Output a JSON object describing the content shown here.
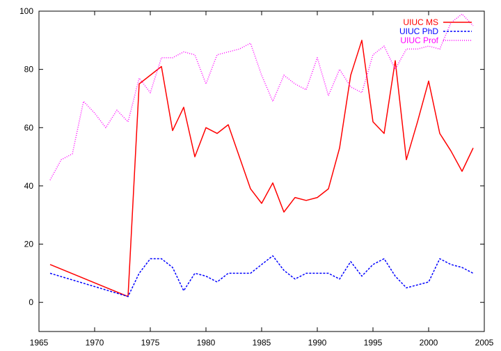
{
  "chart_data": {
    "type": "line",
    "title": "",
    "xlabel": "",
    "ylabel": "",
    "xlim": [
      1965,
      2005
    ],
    "ylim": [
      -10,
      100
    ],
    "xticks": [
      1965,
      1970,
      1975,
      1980,
      1985,
      1990,
      1995,
      2000,
      2005
    ],
    "yticks": [
      0,
      20,
      40,
      60,
      80,
      100
    ],
    "grid": false,
    "legend_position": "top-right",
    "series": [
      {
        "name": "UIUC MS",
        "color": "#ff0000",
        "dash": "solid",
        "points": [
          [
            1966,
            13
          ],
          [
            1973,
            2
          ],
          [
            1974,
            75
          ],
          [
            1976,
            81
          ],
          [
            1977,
            59
          ],
          [
            1978,
            67
          ],
          [
            1979,
            50
          ],
          [
            1980,
            60
          ],
          [
            1981,
            58
          ],
          [
            1982,
            61
          ],
          [
            1983,
            50
          ],
          [
            1984,
            39
          ],
          [
            1985,
            34
          ],
          [
            1986,
            41
          ],
          [
            1987,
            31
          ],
          [
            1988,
            36
          ],
          [
            1989,
            35
          ],
          [
            1990,
            36
          ],
          [
            1991,
            39
          ],
          [
            1992,
            53
          ],
          [
            1993,
            78
          ],
          [
            1994,
            90
          ],
          [
            1995,
            62
          ],
          [
            1996,
            58
          ],
          [
            1997,
            83
          ],
          [
            1998,
            49
          ],
          [
            1999,
            62
          ],
          [
            2000,
            76
          ],
          [
            2001,
            58
          ],
          [
            2002,
            52
          ],
          [
            2003,
            45
          ],
          [
            2004,
            53
          ]
        ]
      },
      {
        "name": "UIUC PhD",
        "color": "#0000ff",
        "dash": "dashed",
        "points": [
          [
            1966,
            10
          ],
          [
            1973,
            2
          ],
          [
            1974,
            10
          ],
          [
            1975,
            15
          ],
          [
            1976,
            15
          ],
          [
            1977,
            12
          ],
          [
            1978,
            4
          ],
          [
            1979,
            10
          ],
          [
            1980,
            9
          ],
          [
            1981,
            7
          ],
          [
            1982,
            10
          ],
          [
            1983,
            10
          ],
          [
            1984,
            10
          ],
          [
            1985,
            13
          ],
          [
            1986,
            16
          ],
          [
            1987,
            11
          ],
          [
            1988,
            8
          ],
          [
            1989,
            10
          ],
          [
            1990,
            10
          ],
          [
            1991,
            10
          ],
          [
            1992,
            8
          ],
          [
            1993,
            14
          ],
          [
            1994,
            9
          ],
          [
            1995,
            13
          ],
          [
            1996,
            15
          ],
          [
            1997,
            9
          ],
          [
            1998,
            5
          ],
          [
            1999,
            6
          ],
          [
            2000,
            7
          ],
          [
            2001,
            15
          ],
          [
            2002,
            13
          ],
          [
            2003,
            12
          ],
          [
            2004,
            10
          ]
        ]
      },
      {
        "name": "UIUC Prof",
        "color": "#ff00ff",
        "dash": "dotted",
        "points": [
          [
            1966,
            42
          ],
          [
            1967,
            49
          ],
          [
            1968,
            51
          ],
          [
            1969,
            69
          ],
          [
            1970,
            65
          ],
          [
            1971,
            60
          ],
          [
            1972,
            66
          ],
          [
            1973,
            62
          ],
          [
            1974,
            77
          ],
          [
            1975,
            72
          ],
          [
            1976,
            84
          ],
          [
            1977,
            84
          ],
          [
            1978,
            86
          ],
          [
            1979,
            85
          ],
          [
            1980,
            75
          ],
          [
            1981,
            85
          ],
          [
            1982,
            86
          ],
          [
            1983,
            87
          ],
          [
            1984,
            89
          ],
          [
            1985,
            78
          ],
          [
            1986,
            69
          ],
          [
            1987,
            78
          ],
          [
            1988,
            75
          ],
          [
            1989,
            73
          ],
          [
            1990,
            84
          ],
          [
            1991,
            71
          ],
          [
            1992,
            80
          ],
          [
            1993,
            74
          ],
          [
            1994,
            72
          ],
          [
            1995,
            85
          ],
          [
            1996,
            88
          ],
          [
            1997,
            80
          ],
          [
            1998,
            87
          ],
          [
            1999,
            87
          ],
          [
            2000,
            88
          ],
          [
            2001,
            87
          ],
          [
            2002,
            96
          ],
          [
            2003,
            99
          ],
          [
            2004,
            95
          ]
        ]
      }
    ]
  }
}
